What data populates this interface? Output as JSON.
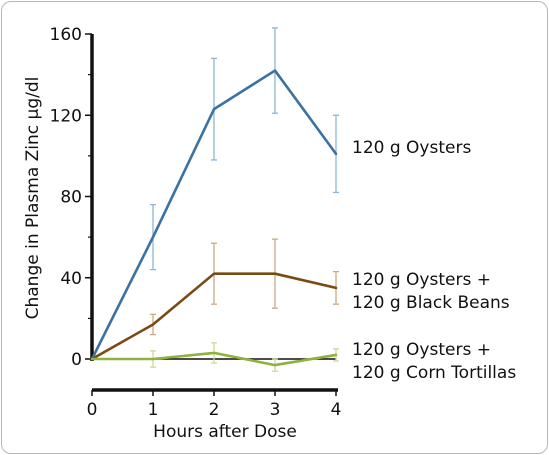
{
  "chart_data": {
    "type": "line",
    "title": "",
    "xlabel": "Hours after Dose",
    "ylabel": "Change in Plasma Zinc µg/dl",
    "x": [
      0,
      1,
      2,
      3,
      4
    ],
    "xlim": [
      0,
      4
    ],
    "ylim": [
      0,
      160
    ],
    "xticks": [
      "0",
      "1",
      "2",
      "3",
      "4"
    ],
    "yticks": [
      "0",
      "40",
      "80",
      "120",
      "160"
    ],
    "grid": false,
    "legend": "direct labels at right of lines",
    "series": [
      {
        "name": "120 g Oysters",
        "label_lines": [
          "120 g Oysters"
        ],
        "color": "#3a72a3",
        "error_color": "#8cb6d6",
        "values": [
          0,
          60,
          123,
          142,
          101
        ],
        "error": [
          0,
          16,
          25,
          21,
          19
        ]
      },
      {
        "name": "120 g Oysters + 120 g Black Beans",
        "label_lines": [
          "120 g Oysters +",
          "120 g Black Beans"
        ],
        "color": "#7a4a14",
        "error_color": "#c8ab85",
        "values": [
          0,
          17,
          42,
          42,
          35
        ],
        "error": [
          0,
          5,
          15,
          17,
          8
        ]
      },
      {
        "name": "120 g Oysters + 120 g Corn Tortillas",
        "label_lines": [
          "120 g Oysters +",
          "120 g Corn Tortillas"
        ],
        "color": "#8db33a",
        "error_color": "#c9da9b",
        "values": [
          0,
          0,
          3,
          -3,
          2
        ],
        "error": [
          0,
          4,
          5,
          3,
          3
        ]
      }
    ]
  }
}
